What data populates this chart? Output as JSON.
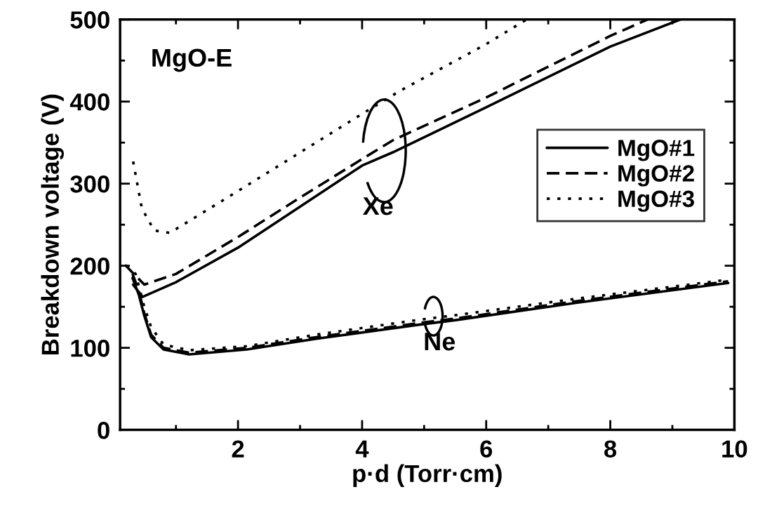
{
  "chart_data": {
    "type": "line",
    "xlabel": "p·d (Torr·cm)",
    "ylabel": "Breakdown voltage (V)",
    "xlim": [
      0.1,
      10
    ],
    "ylim": [
      0,
      500
    ],
    "xticks": [
      2,
      4,
      6,
      8,
      10
    ],
    "yticks": [
      0,
      100,
      200,
      300,
      400,
      500
    ],
    "grid": false,
    "legend": "right",
    "marker": "none",
    "series": [
      {
        "name": "MgO#1",
        "color": "#000000",
        "line_style": "solid",
        "x": [
          0.31,
          0.46,
          1.0,
          2.0,
          3.0,
          4.0,
          4.49,
          6.0,
          8.0,
          9.13
        ],
        "values": [
          177,
          162,
          180,
          222,
          272,
          322,
          338,
          393,
          467,
          500
        ]
      },
      {
        "name": "MgO#2",
        "color": "#000000",
        "line_style": "dashed",
        "x": [
          0.18,
          0.49,
          1.0,
          2.0,
          3.0,
          4.0,
          4.5,
          6.0,
          8.0,
          8.6
        ],
        "values": [
          201,
          177,
          190,
          235,
          283,
          330,
          353,
          405,
          480,
          500
        ]
      },
      {
        "name": "MgO#3",
        "color": "#000000",
        "line_style": "dotted",
        "x": [
          0.31,
          0.45,
          0.65,
          0.9,
          1.44,
          2.0,
          3.0,
          4.0,
          4.61,
          6.0,
          6.65
        ],
        "values": [
          327,
          270,
          243,
          240,
          265,
          291,
          338,
          385,
          413,
          470,
          500
        ]
      },
      {
        "color": "#000000",
        "line_style": "solid",
        "x": [
          0.3,
          0.4,
          0.49,
          0.6,
          0.8,
          1.21,
          2.14,
          3.26,
          4.9,
          5.53,
          7.47,
          9.9
        ],
        "values": [
          185,
          165,
          139,
          113,
          98,
          92,
          98,
          111,
          128,
          134,
          155,
          179
        ]
      },
      {
        "color": "#000000",
        "line_style": "dashed",
        "x": [
          0.3,
          0.4,
          0.49,
          0.6,
          0.8,
          1.21,
          2.14,
          3.26,
          4.9,
          5.53,
          7.47,
          9.9
        ],
        "values": [
          190,
          170,
          142,
          116,
          100,
          94,
          100,
          113,
          130,
          136,
          157,
          181
        ]
      },
      {
        "color": "#000000",
        "line_style": "dotted",
        "x": [
          0.2,
          0.35,
          0.49,
          0.6,
          0.8,
          1.21,
          2.14,
          3.26,
          4.9,
          5.53,
          7.47,
          9.9
        ],
        "values": [
          200,
          190,
          150,
          125,
          104,
          97,
          102,
          116,
          134,
          140,
          160,
          183
        ]
      }
    ],
    "annotations": [
      "MgO-E",
      "Xe",
      "Ne"
    ]
  }
}
